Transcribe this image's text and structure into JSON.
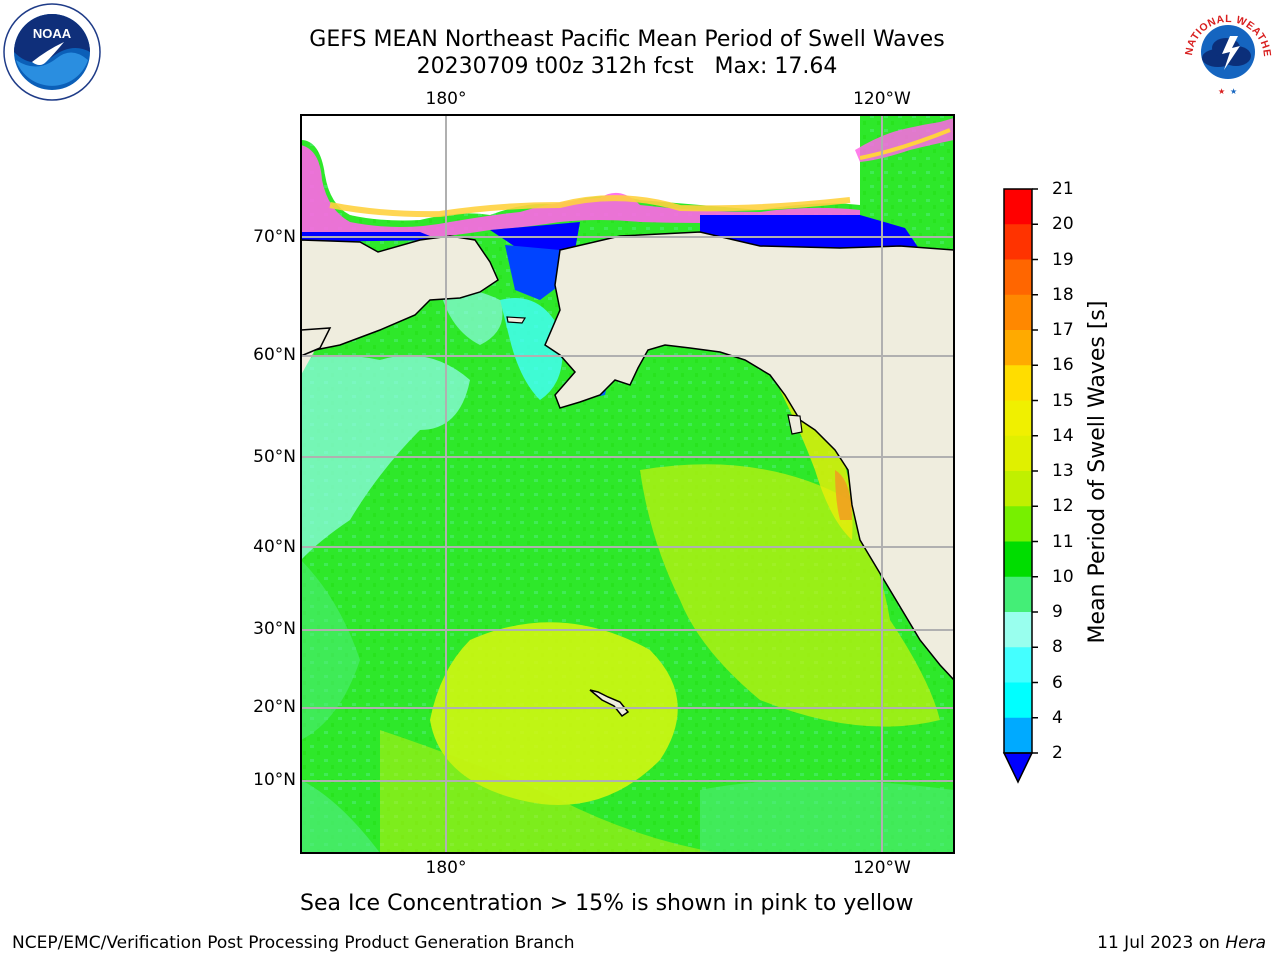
{
  "title": {
    "line1": "GEFS MEAN Northeast Pacific Mean Period of Swell Waves",
    "line2": "20230709 t00z 312h fcst   Max: 17.64"
  },
  "map": {
    "projection": "cylindrical",
    "lon_labels_top": [
      "180°",
      "120°W"
    ],
    "lon_labels_bottom": [
      "180°",
      "120°W"
    ],
    "lat_labels": [
      "70°N",
      "60°N",
      "50°N",
      "40°N",
      "30°N",
      "20°N",
      "10°N"
    ],
    "land_color": "#efedde",
    "ocean_dominant_color": "#2ee82a",
    "grid_color": "#b0b0b0"
  },
  "colorbar": {
    "label": "Mean Period of Swell Waves [s]",
    "ticks": [
      "21",
      "20",
      "19",
      "18",
      "17",
      "16",
      "15",
      "14",
      "13",
      "12",
      "11",
      "10",
      "9",
      "8",
      "6",
      "4",
      "2"
    ],
    "colors": [
      "#ff0000",
      "#ff3300",
      "#ff6600",
      "#ff8800",
      "#ffaa00",
      "#ffdd00",
      "#f0f000",
      "#e0f000",
      "#c0f000",
      "#77f000",
      "#00dd00",
      "#44ee77",
      "#99ffee",
      "#44ffff",
      "#00ffff",
      "#00aaff",
      "#0044ff"
    ],
    "extend_color": "#0000ff"
  },
  "note": "Sea Ice Concentration > 15% is shown in pink to yellow",
  "footer": {
    "left": "NCEP/EMC/Verification Post Processing Product Generation Branch",
    "right_date": "11 Jul 2023 on ",
    "right_host": "Hera"
  },
  "logos": {
    "noaa": {
      "icon": "noaa-logo",
      "text": "NOAA"
    },
    "nws": {
      "icon": "nws-logo",
      "text": "NATIONAL WEATHER SERVICE"
    }
  }
}
